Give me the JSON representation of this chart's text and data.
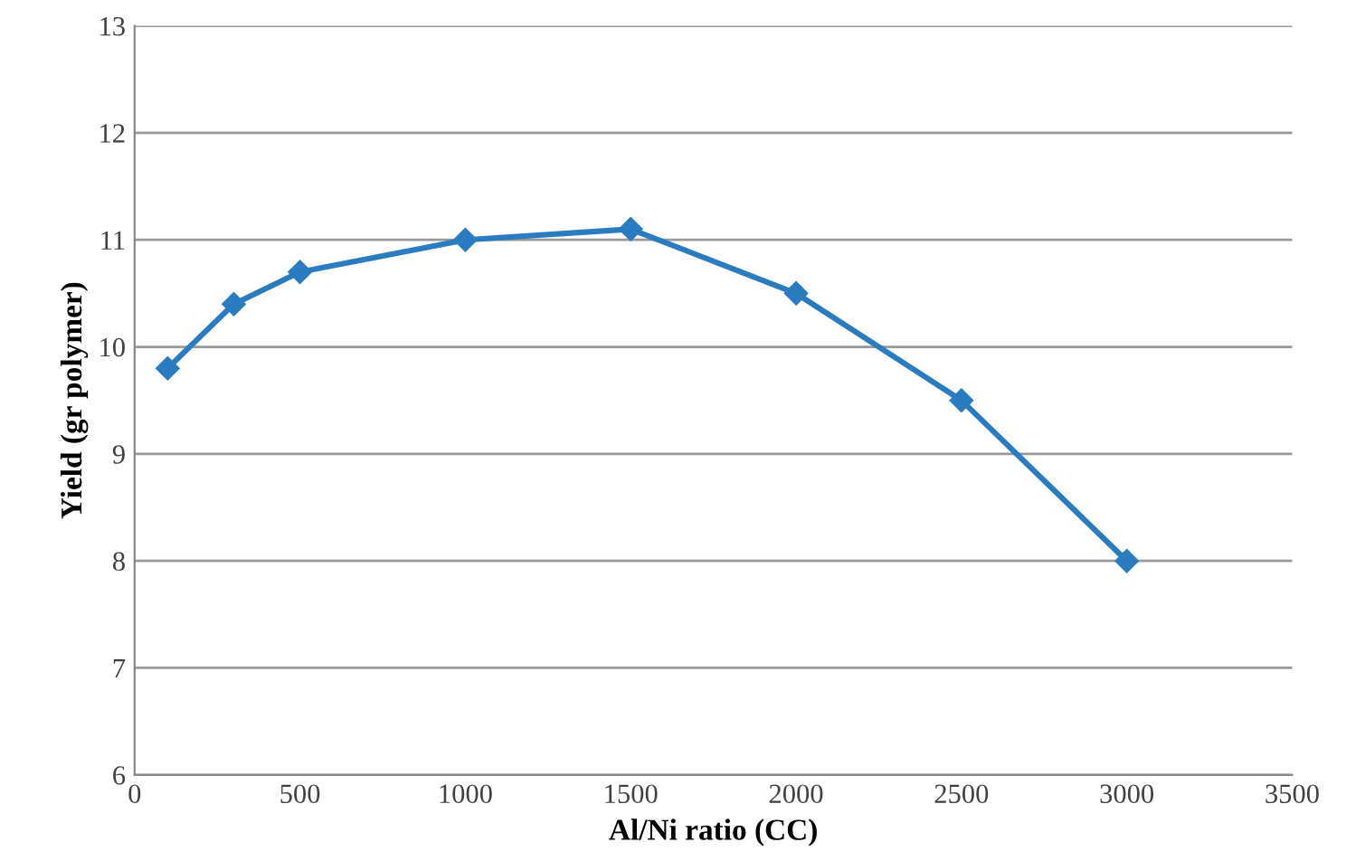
{
  "chart_data": {
    "type": "line",
    "xlabel": "Al/Ni ratio (CC)",
    "ylabel": "Yield (gr polymer)",
    "x": [
      100,
      300,
      500,
      1000,
      1500,
      2000,
      2500,
      3000
    ],
    "series": [
      {
        "color": "#2a7bc0",
        "values": [
          9.8,
          10.4,
          10.7,
          11.0,
          11.1,
          10.5,
          9.5,
          8.0
        ]
      }
    ],
    "xlim": [
      0,
      3500
    ],
    "xticks": [
      0,
      500,
      1000,
      1500,
      2000,
      2500,
      3000,
      3500
    ],
    "ylim": [
      6,
      13
    ],
    "yticks": [
      6,
      7,
      8,
      9,
      10,
      11,
      12,
      13
    ],
    "grid": "y",
    "marker": "diamond",
    "line_style": "solid",
    "legend": false
  }
}
